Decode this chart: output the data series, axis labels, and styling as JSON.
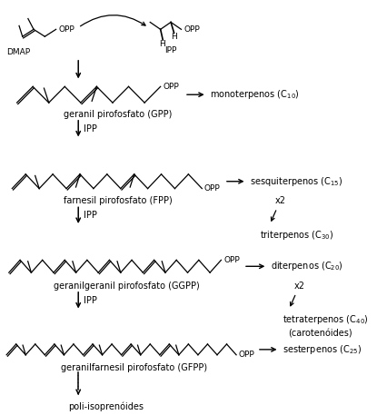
{
  "bg_color": "#ffffff",
  "fig_width": 4.15,
  "fig_height": 4.57,
  "dpi": 100,
  "molecule_labels": [
    "geranil pirofosfato (GPP)",
    "farnesil pirofosfato (FPP)",
    "geranilgeranil pirofosfato (GGPP)",
    "geranilfarnesil pirofosfato (GFPP)"
  ],
  "product_labels": [
    "monoterpenos (C$_{10}$)",
    "sesquiterpenos (C$_{15}$)",
    "triterpenos (C$_{30}$)",
    "diterpenos (C$_{20}$)",
    "tetraterpenos (C$_{40}$)",
    "(carotenóides)",
    "sesterpenos (C$_{25}$)"
  ],
  "poly_label": "poli-isoprenóides",
  "font_size": 7.0,
  "font_size_small": 6.5
}
